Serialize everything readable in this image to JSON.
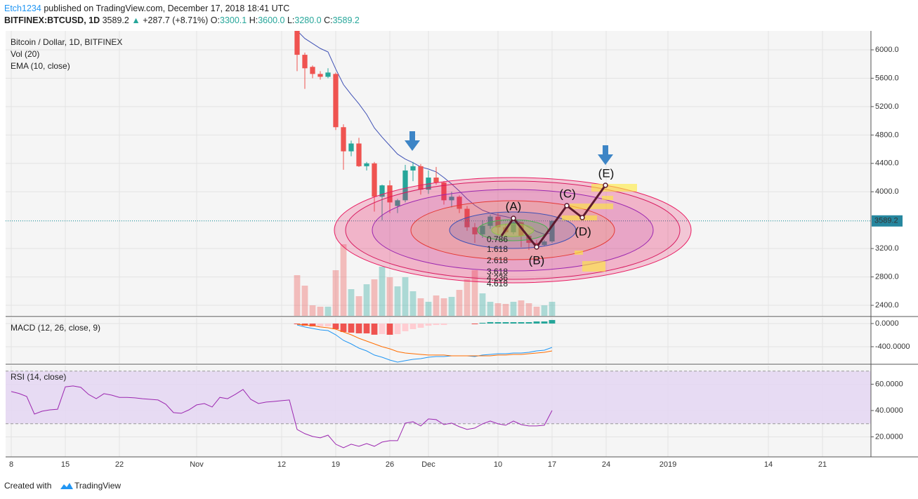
{
  "header": {
    "author": "Etch1234",
    "published": "published on TradingView.com, December 17, 2018 18:41 UTC",
    "symbol": "BITFINEX:BTCUSD, 1D",
    "price": "3589.2",
    "arrow": "▲",
    "change": "+287.7 (+8.71%)",
    "ohlc": [
      {
        "label": "O:",
        "value": "3300.1"
      },
      {
        "label": "H:",
        "value": "3600.0"
      },
      {
        "label": "L:",
        "value": "3280.0"
      },
      {
        "label": "C:",
        "value": "3589.2"
      }
    ]
  },
  "footer": {
    "text": "Created with",
    "brand": "TradingView"
  },
  "chart_data": [
    {
      "type": "candlestick",
      "title": "Bitcoin / Dollar, 1D, BITFINEX",
      "x": [
        "2018-11-14",
        "2018-11-15",
        "2018-11-16",
        "2018-11-17",
        "2018-11-18",
        "2018-11-19",
        "2018-11-20",
        "2018-11-21",
        "2018-11-22",
        "2018-11-23",
        "2018-11-24",
        "2018-11-25",
        "2018-11-26",
        "2018-11-27",
        "2018-11-28",
        "2018-11-29",
        "2018-11-30",
        "2018-12-01",
        "2018-12-02",
        "2018-12-03",
        "2018-12-04",
        "2018-12-05",
        "2018-12-06",
        "2018-12-07",
        "2018-12-08",
        "2018-12-09",
        "2018-12-10",
        "2018-12-11",
        "2018-12-12",
        "2018-12-13",
        "2018-12-14",
        "2018-12-15",
        "2018-12-16",
        "2018-12-17"
      ],
      "open": [
        6350,
        5930,
        5760,
        5660,
        5620,
        5660,
        4910,
        4570,
        4680,
        4360,
        4400,
        3930,
        4090,
        3800,
        3880,
        4300,
        4360,
        4030,
        4200,
        4130,
        3880,
        3930,
        3760,
        3500,
        3400,
        3520,
        3650,
        3500,
        3430,
        3570,
        3380,
        3280,
        3250,
        3300.1
      ],
      "high": [
        6400,
        5960,
        5780,
        5700,
        5740,
        5680,
        4950,
        4720,
        4760,
        4420,
        4420,
        4100,
        4160,
        3900,
        4380,
        4420,
        4390,
        4300,
        4350,
        4150,
        4000,
        3950,
        3800,
        3560,
        3600,
        3680,
        3700,
        3550,
        3600,
        3580,
        3400,
        3320,
        3320,
        3600
      ],
      "low": [
        5700,
        5450,
        5600,
        5580,
        5600,
        4870,
        4310,
        4500,
        4350,
        4300,
        3720,
        3600,
        3700,
        3700,
        3850,
        4150,
        3960,
        3970,
        4100,
        3820,
        3780,
        3700,
        3450,
        3280,
        3350,
        3480,
        3400,
        3400,
        3400,
        3220,
        3180,
        3200,
        3230,
        3280
      ],
      "close": [
        5930,
        5740,
        5660,
        5620,
        5680,
        4910,
        4570,
        4680,
        4360,
        4400,
        3930,
        4090,
        3850,
        3880,
        4300,
        4360,
        4030,
        4200,
        4130,
        3880,
        3930,
        3760,
        3500,
        3400,
        3520,
        3650,
        3500,
        3430,
        3570,
        3380,
        3280,
        3250,
        3300,
        3589.2
      ],
      "up_color": "#26a69a",
      "down_color": "#ef5350",
      "volume": {
        "name": "Vol (20)",
        "values": [
          58,
          43,
          15,
          13,
          13,
          65,
          102,
          38,
          28,
          45,
          52,
          70,
          55,
          42,
          55,
          35,
          25,
          20,
          29,
          25,
          27,
          37,
          52,
          65,
          32,
          20,
          18,
          17,
          20,
          22,
          18,
          13,
          15,
          20
        ],
        "vlim": [
          0,
          406
        ]
      },
      "series": [
        {
          "name": "EMA (10, close)",
          "color": "#3f51b5",
          "values": [
            6270,
            6160,
            6090,
            6020,
            5970,
            5730,
            5510,
            5370,
            5240,
            5090,
            4900,
            4770,
            4650,
            4530,
            4460,
            4410,
            4350,
            4320,
            4280,
            4200,
            4110,
            4010,
            3900,
            3810,
            3740,
            3700,
            3670,
            3650,
            3620,
            3560,
            3500,
            3440,
            3400,
            3420
          ]
        }
      ],
      "xlim": [
        "2018-10-07",
        "2019-01-27"
      ],
      "ylim": [
        2252,
        6267
      ],
      "yticks": [
        {
          "value": 6000,
          "label": "6000.0"
        },
        {
          "value": 5600,
          "label": "5600.0"
        },
        {
          "value": 5200,
          "label": "5200.0"
        },
        {
          "value": 4800,
          "label": "4800.0"
        },
        {
          "value": 4400,
          "label": "4400.0"
        },
        {
          "value": 4000,
          "label": "4000.0"
        },
        {
          "value": 3200,
          "label": "3200.0"
        },
        {
          "value": 2800,
          "label": "2800.0"
        },
        {
          "value": 2400,
          "label": "2400.0"
        }
      ],
      "grid": true,
      "wave_labels": [
        "(A)",
        "(B)",
        "(C)",
        "(D)",
        "(E)"
      ],
      "fib_labels": [
        "0.786",
        "1.618",
        "2.618",
        "3.618",
        "4.236",
        "4.618"
      ]
    },
    {
      "type": "line",
      "title": "MACD (12, 26, close, 9)",
      "x": [
        "2018-11-14",
        "2018-11-15",
        "2018-11-16",
        "2018-11-17",
        "2018-11-18",
        "2018-11-19",
        "2018-11-20",
        "2018-11-21",
        "2018-11-22",
        "2018-11-23",
        "2018-11-24",
        "2018-11-25",
        "2018-11-26",
        "2018-11-27",
        "2018-11-28",
        "2018-11-29",
        "2018-11-30",
        "2018-12-01",
        "2018-12-02",
        "2018-12-03",
        "2018-12-04",
        "2018-12-05",
        "2018-12-06",
        "2018-12-07",
        "2018-12-08",
        "2018-12-09",
        "2018-12-10",
        "2018-12-11",
        "2018-12-12",
        "2018-12-13",
        "2018-12-14",
        "2018-12-15",
        "2018-12-16",
        "2018-12-17"
      ],
      "series": [
        {
          "color": "#2196f3",
          "values": [
            -24,
            -60,
            -85,
            -109,
            -121,
            -194,
            -291,
            -352,
            -424,
            -473,
            -545,
            -582,
            -630,
            -667,
            -642,
            -618,
            -606,
            -582,
            -570,
            -570,
            -558,
            -558,
            -558,
            -570,
            -545,
            -533,
            -521,
            -521,
            -509,
            -509,
            -497,
            -473,
            -461,
            -412
          ]
        },
        {
          "color": "#ff6d00",
          "values": [
            -12,
            -24,
            -36,
            -60,
            -73,
            -97,
            -145,
            -194,
            -255,
            -303,
            -352,
            -400,
            -436,
            -485,
            -509,
            -521,
            -533,
            -545,
            -545,
            -545,
            -558,
            -558,
            -558,
            -558,
            -558,
            -558,
            -545,
            -545,
            -533,
            -533,
            -521,
            -509,
            -497,
            -473
          ]
        }
      ],
      "histogram": {
        "values": [
          -12,
          -36,
          -49,
          -49,
          -48,
          -97,
          -146,
          -158,
          -169,
          -170,
          -193,
          -182,
          -194,
          -182,
          -133,
          -97,
          -73,
          -37,
          -25,
          -25,
          0,
          0,
          0,
          -12,
          13,
          25,
          24,
          24,
          24,
          24,
          24,
          36,
          36,
          61
        ],
        "color": "#ef5350",
        "fade_color": "#ffcdd2",
        "up_color": "#26a69a"
      },
      "xlim": [
        "2018-10-07",
        "2019-01-27"
      ],
      "ylim": [
        -679,
        97
      ],
      "yticks": [
        {
          "value": 0,
          "label": "0.0000"
        },
        {
          "value": -400,
          "label": "-400.0000"
        }
      ]
    },
    {
      "type": "line",
      "title": "RSI (14, close)",
      "x": [
        "2018-10-08",
        "2018-10-09",
        "2018-10-10",
        "2018-10-11",
        "2018-10-12",
        "2018-10-13",
        "2018-10-14",
        "2018-10-15",
        "2018-10-16",
        "2018-10-17",
        "2018-10-18",
        "2018-10-19",
        "2018-10-20",
        "2018-10-21",
        "2018-10-22",
        "2018-10-23",
        "2018-10-24",
        "2018-10-25",
        "2018-10-26",
        "2018-10-27",
        "2018-10-28",
        "2018-10-29",
        "2018-10-30",
        "2018-10-31",
        "2018-11-01",
        "2018-11-02",
        "2018-11-03",
        "2018-11-04",
        "2018-11-05",
        "2018-11-06",
        "2018-11-07",
        "2018-11-08",
        "2018-11-09",
        "2018-11-10",
        "2018-11-11",
        "2018-11-12",
        "2018-11-13",
        "2018-11-14",
        "2018-11-15",
        "2018-11-16",
        "2018-11-17",
        "2018-11-18",
        "2018-11-19",
        "2018-11-20",
        "2018-11-21",
        "2018-11-22",
        "2018-11-23",
        "2018-11-24",
        "2018-11-25",
        "2018-11-26",
        "2018-11-27",
        "2018-11-28",
        "2018-11-29",
        "2018-11-30",
        "2018-12-01",
        "2018-12-02",
        "2018-12-03",
        "2018-12-04",
        "2018-12-05",
        "2018-12-06",
        "2018-12-07",
        "2018-12-08",
        "2018-12-09",
        "2018-12-10",
        "2018-12-11",
        "2018-12-12",
        "2018-12-13",
        "2018-12-14",
        "2018-12-15",
        "2018-12-16",
        "2018-12-17"
      ],
      "series": [
        {
          "color": "#9c27b0",
          "values": [
            54.4,
            53,
            50.7,
            37.3,
            39.5,
            40.5,
            41,
            58,
            58.7,
            57.6,
            52.3,
            49,
            52.8,
            51.7,
            50,
            50,
            49.6,
            49,
            48.5,
            48,
            44.8,
            38.4,
            37.9,
            40.5,
            44.3,
            45.3,
            42.7,
            50,
            49,
            52.3,
            56,
            48.5,
            45.3,
            46.4,
            46.9,
            47.5,
            48,
            25.6,
            22.4,
            20.3,
            19.2,
            21.3,
            14.4,
            11.7,
            14.4,
            12.8,
            14.9,
            12.8,
            16,
            17.1,
            17.1,
            30.4,
            31.5,
            28.3,
            33.6,
            33.1,
            29.3,
            30.4,
            27.7,
            25.6,
            26.7,
            29.9,
            32,
            29.9,
            28.8,
            32,
            29.3,
            28.3,
            28.3,
            28.8,
            40
          ]
        }
      ],
      "band": [
        30,
        70
      ],
      "band_color": "#e3d4f2",
      "xlim": [
        "2018-10-07",
        "2019-01-27"
      ],
      "ylim": [
        5.3,
        74.1
      ],
      "yticks": [
        {
          "value": 60,
          "label": "60.0000"
        },
        {
          "value": 40,
          "label": "40.0000"
        },
        {
          "value": 20,
          "label": "20.0000"
        }
      ],
      "xticks": [
        {
          "value": "2018-10-08",
          "label": "8"
        },
        {
          "value": "2018-10-15",
          "label": "15"
        },
        {
          "value": "2018-10-22",
          "label": "22"
        },
        {
          "value": "2018-11-01",
          "label": "Nov"
        },
        {
          "value": "2018-11-12",
          "label": "12"
        },
        {
          "value": "2018-11-19",
          "label": "19"
        },
        {
          "value": "2018-11-26",
          "label": "26"
        },
        {
          "value": "2018-12-01",
          "label": "Dec"
        },
        {
          "value": "2018-12-10",
          "label": "10"
        },
        {
          "value": "2018-12-17",
          "label": "17"
        },
        {
          "value": "2018-12-24",
          "label": "24"
        },
        {
          "value": "2019-01-01",
          "label": "2019"
        },
        {
          "value": "2019-01-14",
          "label": "14"
        },
        {
          "value": "2019-01-21",
          "label": "21"
        }
      ]
    }
  ]
}
